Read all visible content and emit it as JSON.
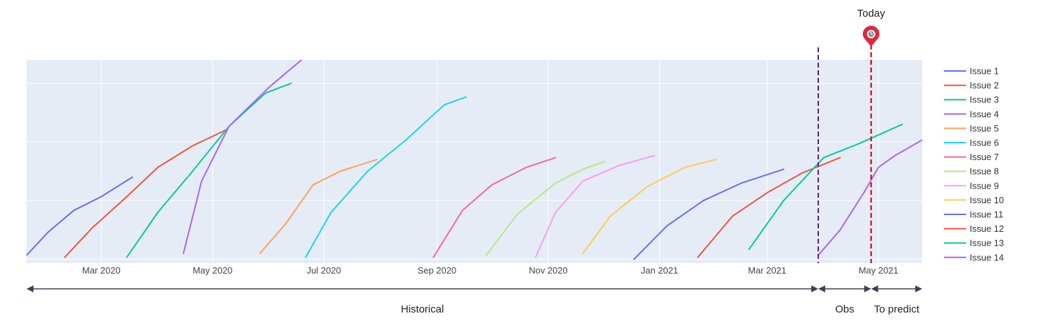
{
  "chart_data": {
    "type": "line",
    "x_axis": {
      "type": "date",
      "range": [
        "2020-01-20",
        "2021-05-25"
      ],
      "ticks": [
        {
          "date": "2020-03-01",
          "label": "Mar 2020"
        },
        {
          "date": "2020-05-01",
          "label": "May 2020"
        },
        {
          "date": "2020-07-01",
          "label": "Jul 2020"
        },
        {
          "date": "2020-09-01",
          "label": "Sep 2020"
        },
        {
          "date": "2020-11-01",
          "label": "Nov 2020"
        },
        {
          "date": "2021-01-01",
          "label": "Jan 2021"
        },
        {
          "date": "2021-03-01",
          "label": "Mar 2021"
        },
        {
          "date": "2021-05-01",
          "label": "May 2021"
        }
      ]
    },
    "y_axis": {
      "range": [
        -2,
        102
      ],
      "gridlines": [
        0,
        30,
        60,
        90
      ],
      "tick_labels_visible": false
    },
    "grid": true,
    "legend_position": "right",
    "series": [
      {
        "name": "Issue 1",
        "color": "#636EFA",
        "points": [
          [
            "2020-01-20",
            2
          ],
          [
            "2020-02-01",
            14
          ],
          [
            "2020-02-15",
            25
          ],
          [
            "2020-03-01",
            32
          ],
          [
            "2020-03-18",
            42
          ]
        ]
      },
      {
        "name": "Issue 2",
        "color": "#EF553B",
        "points": [
          [
            "2020-02-10",
            1
          ],
          [
            "2020-02-25",
            16
          ],
          [
            "2020-03-15",
            32
          ],
          [
            "2020-04-01",
            47
          ],
          [
            "2020-04-20",
            58
          ],
          [
            "2020-05-08",
            66
          ]
        ]
      },
      {
        "name": "Issue 3",
        "color": "#00CC96",
        "points": [
          [
            "2020-03-15",
            1
          ],
          [
            "2020-04-01",
            24
          ],
          [
            "2020-04-20",
            45
          ],
          [
            "2020-05-10",
            68
          ],
          [
            "2020-05-30",
            85
          ],
          [
            "2020-06-13",
            90
          ]
        ]
      },
      {
        "name": "Issue 4",
        "color": "#AB63FA",
        "points": [
          [
            "2020-04-15",
            3
          ],
          [
            "2020-04-25",
            40
          ],
          [
            "2020-05-10",
            68
          ],
          [
            "2020-06-01",
            88
          ],
          [
            "2020-06-20",
            103
          ]
        ]
      },
      {
        "name": "Issue 5",
        "color": "#FFA15A",
        "points": [
          [
            "2020-05-27",
            3
          ],
          [
            "2020-06-10",
            18
          ],
          [
            "2020-06-25",
            38
          ],
          [
            "2020-07-10",
            45
          ],
          [
            "2020-07-30",
            51
          ]
        ]
      },
      {
        "name": "Issue 6",
        "color": "#19D3F3",
        "points": [
          [
            "2020-06-21",
            1
          ],
          [
            "2020-07-05",
            24
          ],
          [
            "2020-07-25",
            45
          ],
          [
            "2020-08-15",
            61
          ],
          [
            "2020-09-05",
            79
          ],
          [
            "2020-09-17",
            83
          ]
        ]
      },
      {
        "name": "Issue 7",
        "color": "#FF6692",
        "points": [
          [
            "2020-08-30",
            1
          ],
          [
            "2020-09-15",
            25
          ],
          [
            "2020-10-01",
            38
          ],
          [
            "2020-10-20",
            47
          ],
          [
            "2020-11-05",
            52
          ]
        ]
      },
      {
        "name": "Issue 8",
        "color": "#B6E880",
        "points": [
          [
            "2020-09-28",
            2
          ],
          [
            "2020-10-15",
            23
          ],
          [
            "2020-11-05",
            39
          ],
          [
            "2020-11-20",
            46
          ],
          [
            "2020-12-02",
            50
          ]
        ]
      },
      {
        "name": "Issue 9",
        "color": "#FF97FF",
        "points": [
          [
            "2020-10-25",
            1
          ],
          [
            "2020-11-05",
            24
          ],
          [
            "2020-11-20",
            40
          ],
          [
            "2020-12-10",
            48
          ],
          [
            "2020-12-29",
            53
          ]
        ]
      },
      {
        "name": "Issue 10",
        "color": "#FECB52",
        "points": [
          [
            "2020-11-20",
            3
          ],
          [
            "2020-12-05",
            22
          ],
          [
            "2020-12-25",
            37
          ],
          [
            "2021-01-15",
            47
          ],
          [
            "2021-02-01",
            51
          ]
        ]
      },
      {
        "name": "Issue 11",
        "color": "#636EFA",
        "points": [
          [
            "2020-12-18",
            0
          ],
          [
            "2021-01-05",
            17
          ],
          [
            "2021-01-25",
            30
          ],
          [
            "2021-02-15",
            39
          ],
          [
            "2021-03-10",
            46
          ]
        ]
      },
      {
        "name": "Issue 12",
        "color": "#EF553B",
        "points": [
          [
            "2021-01-22",
            1
          ],
          [
            "2021-02-10",
            22
          ],
          [
            "2021-03-01",
            34
          ],
          [
            "2021-03-20",
            44
          ],
          [
            "2021-04-10",
            52
          ]
        ]
      },
      {
        "name": "Issue 13",
        "color": "#00CC96",
        "points": [
          [
            "2021-02-19",
            5
          ],
          [
            "2021-03-10",
            30
          ],
          [
            "2021-04-01",
            52
          ],
          [
            "2021-04-20",
            59
          ],
          [
            "2021-05-14",
            69
          ]
        ]
      },
      {
        "name": "Issue 14",
        "color": "#AB63FA",
        "points": [
          [
            "2021-03-29",
            2
          ],
          [
            "2021-04-10",
            15
          ],
          [
            "2021-04-23",
            34
          ],
          [
            "2021-05-01",
            47
          ],
          [
            "2021-05-10",
            53
          ],
          [
            "2021-05-25",
            61
          ]
        ]
      }
    ],
    "vlines": [
      {
        "date": "2021-03-29",
        "color": "#5B1A8E",
        "style": "dashed"
      },
      {
        "date": "2021-04-27",
        "color": "#E11D1D",
        "style": "dashed"
      }
    ],
    "annotations": {
      "today_label": "Today",
      "today_date": "2021-04-27",
      "today_marker_color": "#E0283C",
      "periods": [
        {
          "label": "Historical",
          "from": "2020-01-20",
          "to": "2021-03-29"
        },
        {
          "label": "Obs",
          "from": "2021-03-29",
          "to": "2021-04-27"
        },
        {
          "label": "To predict",
          "from": "2021-04-27",
          "to": "2021-05-25"
        }
      ]
    },
    "colors": {
      "plot_bg": "#E5ECF6",
      "grid": "#FFFFFF",
      "arrow": "#3B4351"
    }
  }
}
